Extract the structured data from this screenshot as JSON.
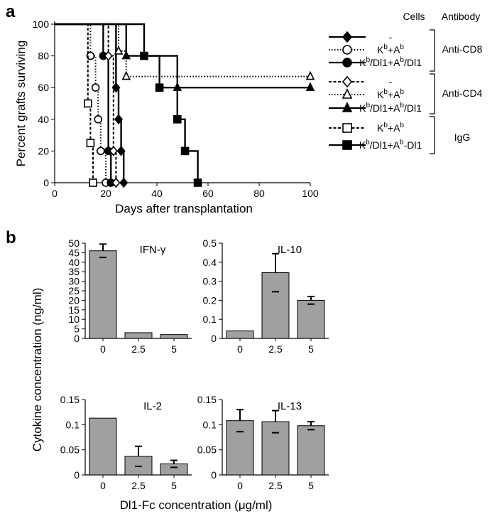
{
  "panel_a_label": "a",
  "panel_b_label": "b",
  "chart_data": [
    {
      "type": "line",
      "step": true,
      "xlabel": "Days after transplantation",
      "ylabel": "Percent grafts surviving",
      "xlim": [
        0,
        100
      ],
      "ylim": [
        0,
        100
      ],
      "xticks": [
        0,
        20,
        40,
        60,
        80,
        100
      ],
      "yticks": [
        0,
        20,
        40,
        60,
        80,
        100
      ],
      "legend_headers": {
        "cells": "Cells",
        "antibody": "Antibody"
      },
      "groups": [
        {
          "antibody": "Anti-CD8",
          "members": [
            0,
            1,
            2
          ]
        },
        {
          "antibody": "Anti-CD4",
          "members": [
            3,
            4,
            5
          ]
        },
        {
          "antibody": "IgG",
          "members": [
            6,
            7
          ]
        }
      ],
      "series": [
        {
          "name": "-",
          "marker": "diamond",
          "fill": "#000000",
          "dash": "solid",
          "points": [
            [
              0,
              100
            ],
            [
              20,
              100
            ],
            [
              24,
              100
            ],
            [
              24,
              60
            ],
            [
              25,
              60
            ],
            [
              25,
              40
            ],
            [
              26,
              40
            ],
            [
              26,
              20
            ],
            [
              27,
              20
            ],
            [
              27,
              0
            ]
          ]
        },
        {
          "name": "Kb+Ab",
          "marker": "circle",
          "fill": "#ffffff",
          "dash": "dotted",
          "points": [
            [
              0,
              100
            ],
            [
              14,
              100
            ],
            [
              14,
              80
            ],
            [
              16,
              80
            ],
            [
              16,
              60
            ],
            [
              17,
              60
            ],
            [
              17,
              40
            ],
            [
              18,
              40
            ],
            [
              18,
              20
            ],
            [
              20,
              20
            ],
            [
              20,
              0
            ]
          ]
        },
        {
          "name": "Kb/Dl1+Ab/Dl1",
          "marker": "circle",
          "fill": "#000000",
          "dash": "solid",
          "points": [
            [
              0,
              100
            ],
            [
              19,
              100
            ],
            [
              19,
              80
            ],
            [
              21,
              80
            ],
            [
              21,
              20
            ],
            [
              22,
              20
            ],
            [
              22,
              0
            ]
          ]
        },
        {
          "name": "-",
          "marker": "diamond",
          "fill": "#ffffff",
          "dash": "dashed",
          "points": [
            [
              0,
              100
            ],
            [
              21,
              100
            ],
            [
              21,
              80
            ],
            [
              23,
              80
            ],
            [
              23,
              20
            ],
            [
              24,
              20
            ],
            [
              24,
              0
            ]
          ]
        },
        {
          "name": "Kb+Ab",
          "marker": "triangle",
          "fill": "#ffffff",
          "dash": "dotted",
          "points": [
            [
              0,
              100
            ],
            [
              25,
              100
            ],
            [
              25,
              83
            ],
            [
              28,
              83
            ],
            [
              28,
              67
            ],
            [
              100,
              67
            ]
          ]
        },
        {
          "name": "Kb/Dl1+Ab/Dl1",
          "marker": "triangle",
          "fill": "#000000",
          "dash": "solid",
          "points": [
            [
              0,
              100
            ],
            [
              28,
              100
            ],
            [
              28,
              80
            ],
            [
              48,
              80
            ],
            [
              48,
              60
            ],
            [
              100,
              60
            ]
          ]
        },
        {
          "name": "Kb+Ab",
          "marker": "square",
          "fill": "#ffffff",
          "dash": "dashed",
          "points": [
            [
              0,
              100
            ],
            [
              13,
              100
            ],
            [
              13,
              50
            ],
            [
              14,
              50
            ],
            [
              14,
              25
            ],
            [
              15,
              25
            ],
            [
              15,
              0
            ]
          ]
        },
        {
          "name": "Kb/Dl1+Ab-Dl1",
          "marker": "square",
          "fill": "#000000",
          "dash": "solid",
          "points": [
            [
              0,
              100
            ],
            [
              35,
              100
            ],
            [
              35,
              80
            ],
            [
              41,
              80
            ],
            [
              41,
              60
            ],
            [
              48,
              60
            ],
            [
              48,
              40
            ],
            [
              51,
              40
            ],
            [
              51,
              20
            ],
            [
              56,
              20
            ],
            [
              56,
              0
            ]
          ]
        }
      ]
    },
    {
      "type": "bar",
      "title": "IFN-γ",
      "categories": [
        "0",
        "2.5",
        "5"
      ],
      "values": [
        46,
        3,
        2
      ],
      "errors": [
        3.5,
        0,
        0
      ],
      "ylim": [
        0,
        50
      ],
      "yticks": [
        0,
        5,
        10,
        15,
        20,
        25,
        30,
        35,
        40,
        45,
        50
      ],
      "bar_color": "#a0a0a0"
    },
    {
      "type": "bar",
      "title": "IL-10",
      "categories": [
        "0",
        "2.5",
        "5"
      ],
      "values": [
        0.04,
        0.345,
        0.2
      ],
      "errors": [
        0,
        0.1,
        0.02
      ],
      "ylim": [
        0,
        0.5
      ],
      "yticks": [
        0,
        0.1,
        0.2,
        0.3,
        0.4,
        0.5
      ],
      "bar_color": "#a0a0a0"
    },
    {
      "type": "bar",
      "title": "IL-2",
      "categories": [
        "0",
        "2.5",
        "5"
      ],
      "values": [
        0.113,
        0.037,
        0.022
      ],
      "errors": [
        0,
        0.02,
        0.007
      ],
      "ylim": [
        0,
        0.15
      ],
      "yticks": [
        0,
        0.05,
        0.1,
        0.15
      ],
      "bar_color": "#a0a0a0"
    },
    {
      "type": "bar",
      "title": "IL-13",
      "categories": [
        "0",
        "2.5",
        "5"
      ],
      "values": [
        0.108,
        0.106,
        0.098
      ],
      "errors": [
        0.022,
        0.022,
        0.008
      ],
      "ylim": [
        0,
        0.15
      ],
      "yticks": [
        0,
        0.05,
        0.1,
        0.15
      ],
      "bar_color": "#a0a0a0"
    }
  ],
  "panel_b_ylabel": "Cytokine concentration (ng/ml)",
  "panel_b_xlabel": "Dl1-Fc concentration (μg/ml)"
}
